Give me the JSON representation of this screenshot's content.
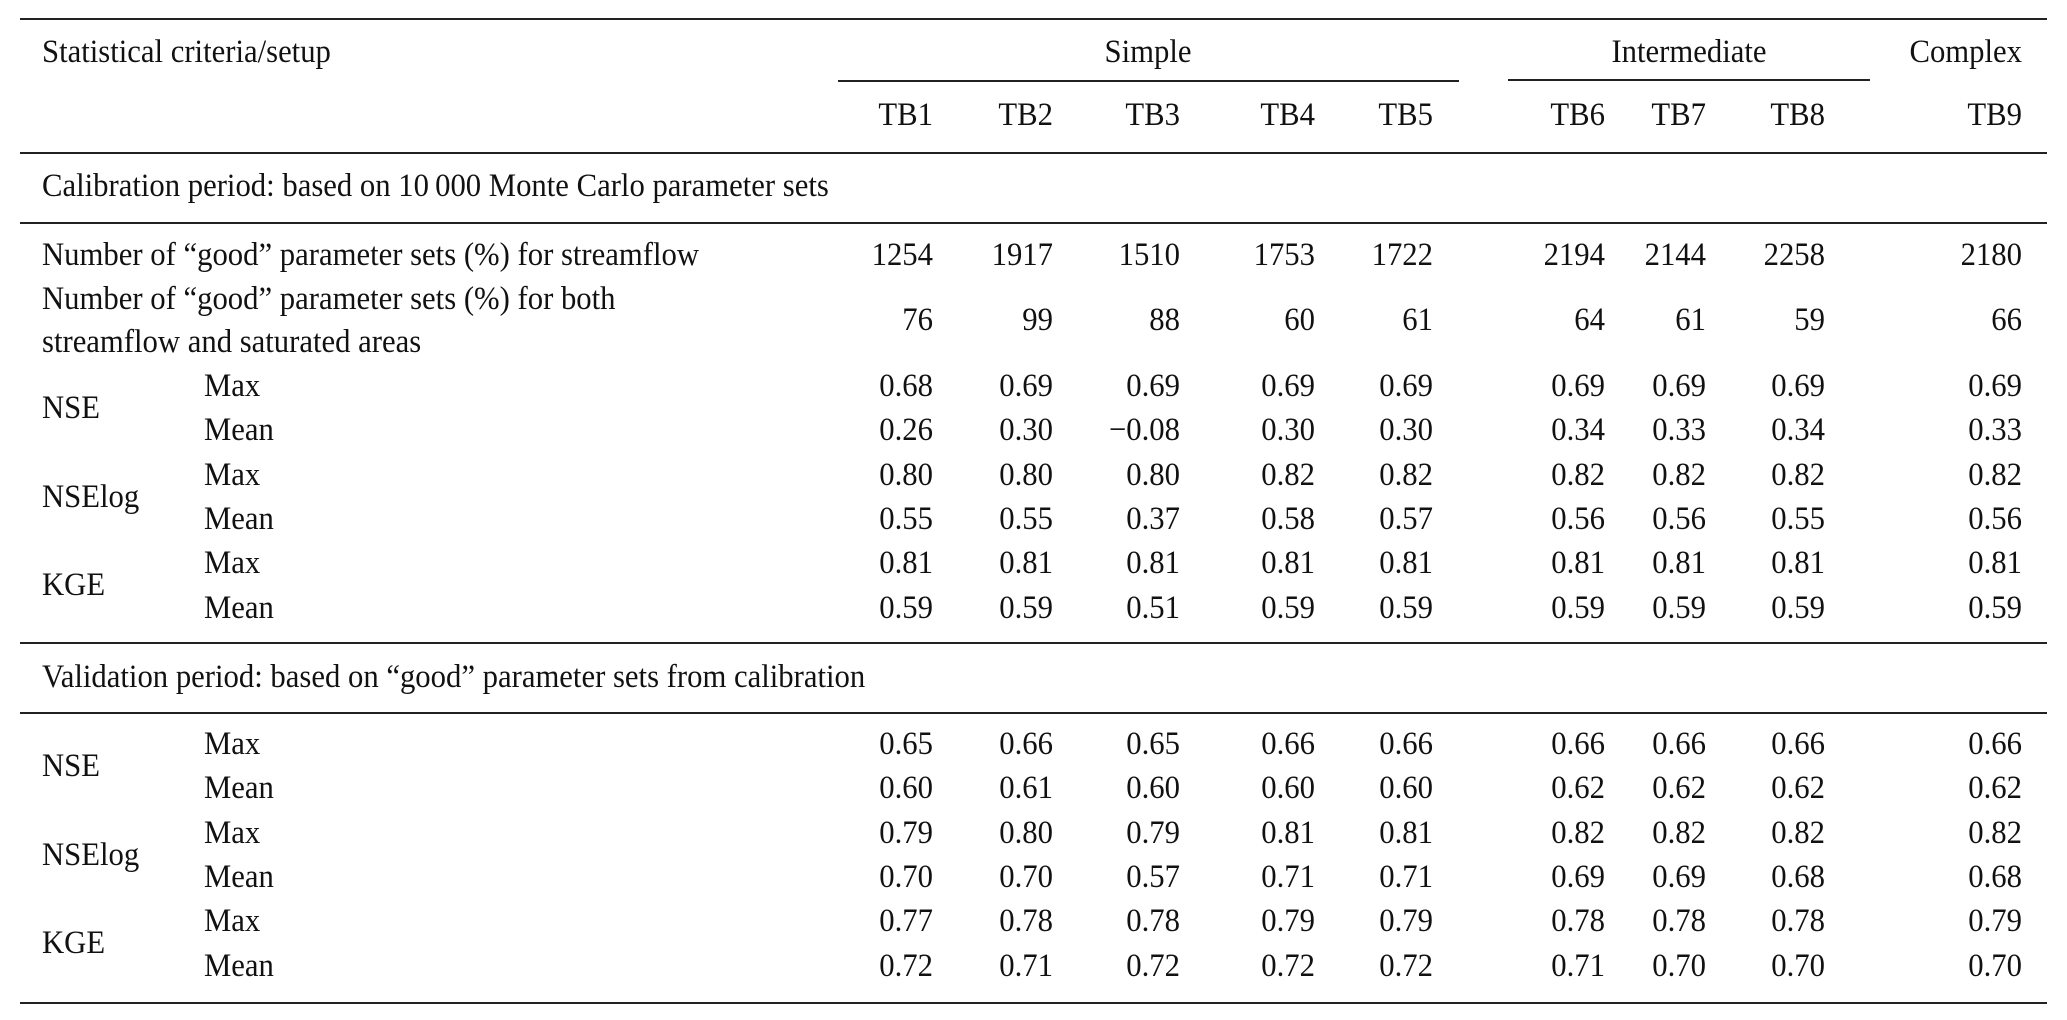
{
  "header": {
    "stub_label": "Statistical criteria/setup",
    "groups": [
      {
        "label": "Simple",
        "span": [
          "TB1",
          "TB2",
          "TB3",
          "TB4",
          "TB5"
        ]
      },
      {
        "label": "Intermediate",
        "span": [
          "TB6",
          "TB7",
          "TB8"
        ]
      },
      {
        "label": "Complex",
        "span": [
          "TB9"
        ]
      }
    ],
    "columns": [
      "TB1",
      "TB2",
      "TB3",
      "TB4",
      "TB5",
      "TB6",
      "TB7",
      "TB8",
      "TB9"
    ]
  },
  "calibration": {
    "section_title": "Calibration period: based on 10 000 Monte Carlo parameter sets",
    "good_streamflow": {
      "label": "Number of “good” parameter sets (%) for streamflow",
      "values": [
        "1254",
        "1917",
        "1510",
        "1753",
        "1722",
        "2194",
        "2144",
        "2258",
        "2180"
      ]
    },
    "good_both": {
      "label_line1": "Number of “good” parameter sets (%) for both",
      "label_line2": "streamflow and saturated areas",
      "values": [
        "76",
        "99",
        "88",
        "60",
        "61",
        "64",
        "61",
        "59",
        "66"
      ]
    },
    "metrics": [
      {
        "name": "NSE",
        "rows": [
          {
            "stat": "Max",
            "values": [
              "0.68",
              "0.69",
              "0.69",
              "0.69",
              "0.69",
              "0.69",
              "0.69",
              "0.69",
              "0.69"
            ]
          },
          {
            "stat": "Mean",
            "values": [
              "0.26",
              "0.30",
              "−0.08",
              "0.30",
              "0.30",
              "0.34",
              "0.33",
              "0.34",
              "0.33"
            ]
          }
        ]
      },
      {
        "name": "NSElog",
        "rows": [
          {
            "stat": "Max",
            "values": [
              "0.80",
              "0.80",
              "0.80",
              "0.82",
              "0.82",
              "0.82",
              "0.82",
              "0.82",
              "0.82"
            ]
          },
          {
            "stat": "Mean",
            "values": [
              "0.55",
              "0.55",
              "0.37",
              "0.58",
              "0.57",
              "0.56",
              "0.56",
              "0.55",
              "0.56"
            ]
          }
        ]
      },
      {
        "name": "KGE",
        "rows": [
          {
            "stat": "Max",
            "values": [
              "0.81",
              "0.81",
              "0.81",
              "0.81",
              "0.81",
              "0.81",
              "0.81",
              "0.81",
              "0.81"
            ]
          },
          {
            "stat": "Mean",
            "values": [
              "0.59",
              "0.59",
              "0.51",
              "0.59",
              "0.59",
              "0.59",
              "0.59",
              "0.59",
              "0.59"
            ]
          }
        ]
      }
    ]
  },
  "validation": {
    "section_title": "Validation period: based on “good” parameter sets from calibration",
    "metrics": [
      {
        "name": "NSE",
        "rows": [
          {
            "stat": "Max",
            "values": [
              "0.65",
              "0.66",
              "0.65",
              "0.66",
              "0.66",
              "0.66",
              "0.66",
              "0.66",
              "0.66"
            ]
          },
          {
            "stat": "Mean",
            "values": [
              "0.60",
              "0.61",
              "0.60",
              "0.60",
              "0.60",
              "0.62",
              "0.62",
              "0.62",
              "0.62"
            ]
          }
        ]
      },
      {
        "name": "NSElog",
        "rows": [
          {
            "stat": "Max",
            "values": [
              "0.79",
              "0.80",
              "0.79",
              "0.81",
              "0.81",
              "0.82",
              "0.82",
              "0.82",
              "0.82"
            ]
          },
          {
            "stat": "Mean",
            "values": [
              "0.70",
              "0.70",
              "0.57",
              "0.71",
              "0.71",
              "0.69",
              "0.69",
              "0.68",
              "0.68"
            ]
          }
        ]
      },
      {
        "name": "KGE",
        "rows": [
          {
            "stat": "Max",
            "values": [
              "0.77",
              "0.78",
              "0.78",
              "0.79",
              "0.79",
              "0.78",
              "0.78",
              "0.78",
              "0.79"
            ]
          },
          {
            "stat": "Mean",
            "values": [
              "0.72",
              "0.71",
              "0.72",
              "0.72",
              "0.72",
              "0.71",
              "0.70",
              "0.70",
              "0.70"
            ]
          }
        ]
      }
    ]
  },
  "layout": {
    "col_right_edges": [
      933,
      1053,
      1180,
      1315,
      1433,
      1605,
      1706,
      1825,
      2022
    ]
  }
}
